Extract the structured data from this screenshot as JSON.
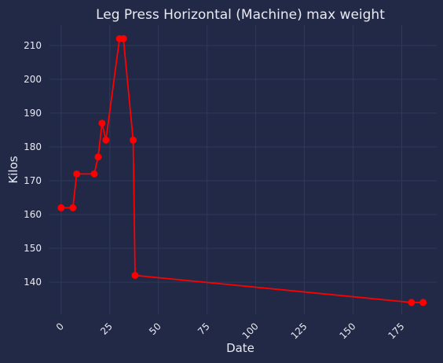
{
  "chart_data": {
    "type": "line",
    "title": "Leg Press Horizontal (Machine) max weight",
    "xlabel": "Date",
    "ylabel": "Kilos",
    "xlim": [
      -6,
      193
    ],
    "ylim": [
      130.5,
      216
    ],
    "x_ticks": [
      0,
      25,
      50,
      75,
      100,
      125,
      150,
      175
    ],
    "y_ticks": [
      140,
      150,
      160,
      170,
      180,
      190,
      200,
      210
    ],
    "grid": true,
    "series": [
      {
        "color": "#ff0000",
        "x": [
          0,
          6,
          8,
          17,
          19,
          21,
          23,
          30,
          32,
          37,
          38,
          180,
          186
        ],
        "y": [
          162,
          162,
          172,
          172,
          177,
          187,
          182,
          212,
          212,
          182,
          142,
          134,
          134
        ]
      }
    ]
  }
}
